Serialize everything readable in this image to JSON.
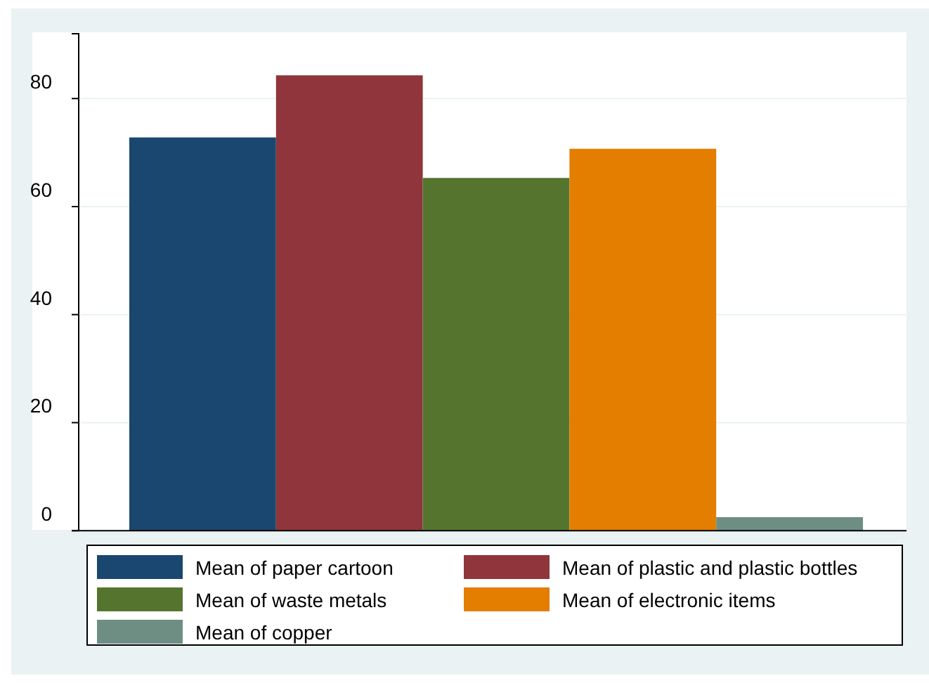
{
  "chart_data": {
    "type": "bar",
    "categories": [
      null
    ],
    "series": [
      {
        "name": "Mean of paper cartoon",
        "color": "#1a476f",
        "values": [
          72.8
        ]
      },
      {
        "name": "Mean of plastic and plastic bottles",
        "color": "#90353b",
        "values": [
          84.3
        ]
      },
      {
        "name": "Mean of waste metals",
        "color": "#55752f",
        "values": [
          65.3
        ]
      },
      {
        "name": "Mean of electronic items",
        "color": "#e37e00",
        "values": [
          70.7
        ]
      },
      {
        "name": "Mean of copper",
        "color": "#6e8e84",
        "values": [
          2.5
        ]
      }
    ],
    "ylim": [
      0,
      92
    ],
    "yticks": [
      0,
      20,
      40,
      60,
      80
    ],
    "grid": "y",
    "legend": "bottom"
  }
}
